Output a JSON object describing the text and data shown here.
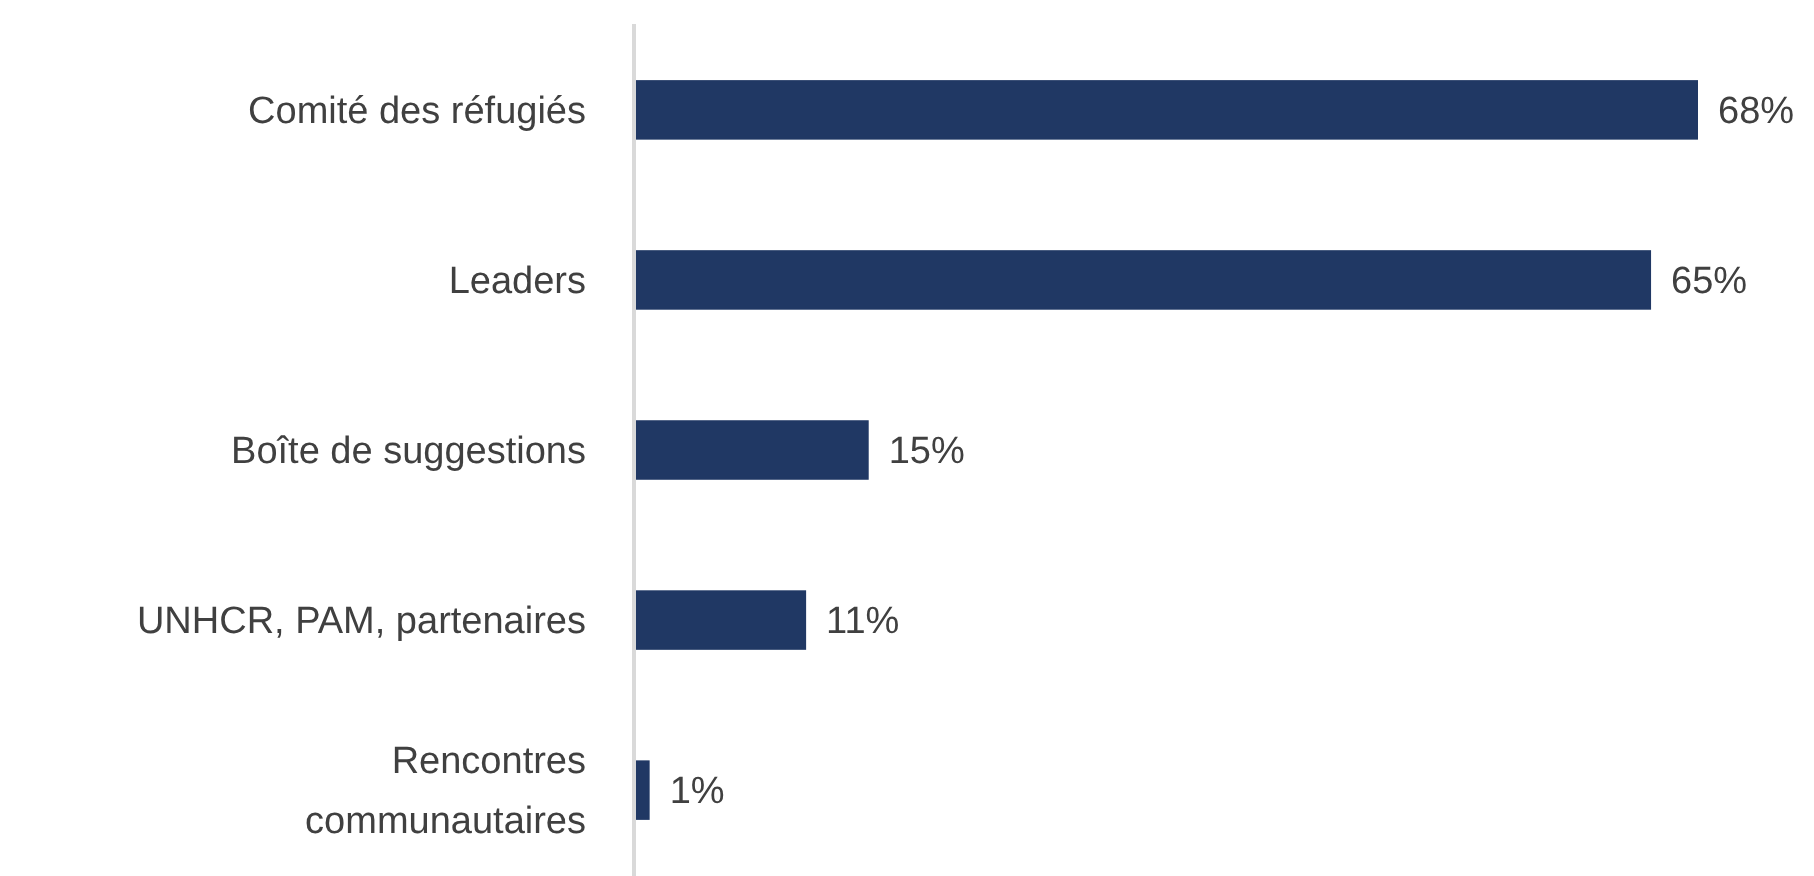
{
  "chart_data": {
    "type": "bar",
    "orientation": "horizontal",
    "categories": [
      "Comité des réfugiés",
      "Leaders",
      "Boîte de suggestions",
      "UNHCR, PAM, partenaires",
      "Rencontres communautaires"
    ],
    "values": [
      68,
      65,
      15,
      11,
      1
    ],
    "value_labels": [
      "68%",
      "65%",
      "15%",
      "11%",
      "1%"
    ],
    "color": "#203864"
  }
}
